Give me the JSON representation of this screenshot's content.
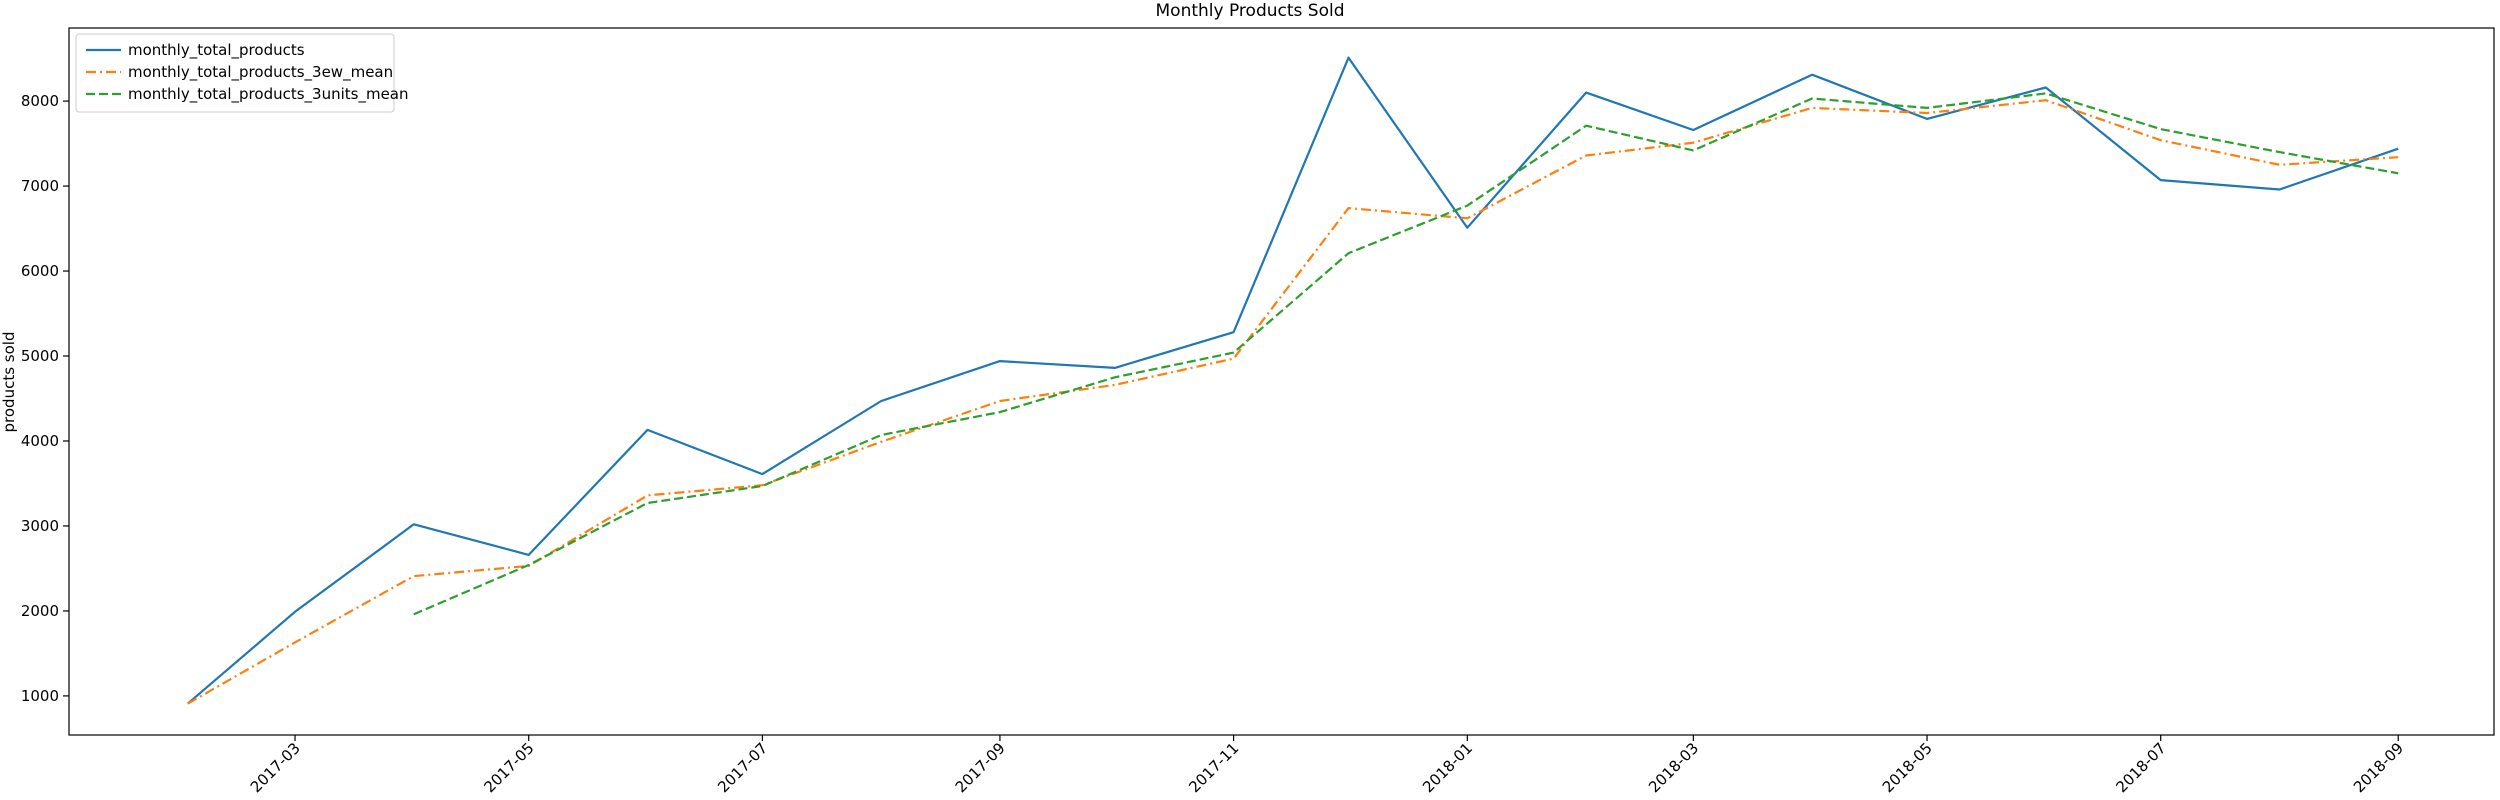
{
  "chart_data": {
    "type": "line",
    "title": "Monthly Products Sold",
    "xlabel": "",
    "ylabel": "products sold",
    "x": [
      "2017-02",
      "2017-03",
      "2017-04",
      "2017-05",
      "2017-06",
      "2017-07",
      "2017-08",
      "2017-09",
      "2017-10",
      "2017-11",
      "2017-12",
      "2018-01",
      "2018-02",
      "2018-03",
      "2018-04",
      "2018-05",
      "2018-06",
      "2018-07",
      "2018-08",
      "2018-09"
    ],
    "x_ticks": [
      "2017-03",
      "2017-05",
      "2017-07",
      "2017-09",
      "2017-11",
      "2018-01",
      "2018-03",
      "2018-05",
      "2018-07",
      "2018-09"
    ],
    "y_ticks": [
      1000,
      2000,
      3000,
      4000,
      5000,
      6000,
      7000,
      8000
    ],
    "xlim": [
      "2017-01-01",
      "2018-09-26"
    ],
    "ylim": [
      540,
      8860
    ],
    "grid": false,
    "legend_position": "top-left",
    "series": [
      {
        "name": "monthly_total_products",
        "color": "#1f77b4",
        "dash": "solid",
        "values": [
          910,
          1990,
          3020,
          2660,
          4130,
          3610,
          4470,
          4940,
          4860,
          5280,
          8510,
          6510,
          8100,
          7660,
          8310,
          7790,
          8160,
          7070,
          6960,
          7440
        ]
      },
      {
        "name": "monthly_total_products_3ew_mean",
        "color": "#ff7f0e",
        "dash": "dashdot",
        "values": [
          910,
          1630,
          2410,
          2530,
          3360,
          3480,
          3990,
          4470,
          4660,
          4970,
          6740,
          6620,
          7360,
          7510,
          7920,
          7860,
          8010,
          7540,
          7250,
          7340
        ]
      },
      {
        "name": "monthly_total_products_3units_mean",
        "color": "#2ca02c",
        "dash": "dashed",
        "values": [
          null,
          null,
          1960,
          2540,
          3270,
          3470,
          4070,
          4340,
          4750,
          5040,
          6210,
          6770,
          7710,
          7420,
          8030,
          7920,
          8090,
          7670,
          7400,
          7150
        ]
      }
    ]
  }
}
